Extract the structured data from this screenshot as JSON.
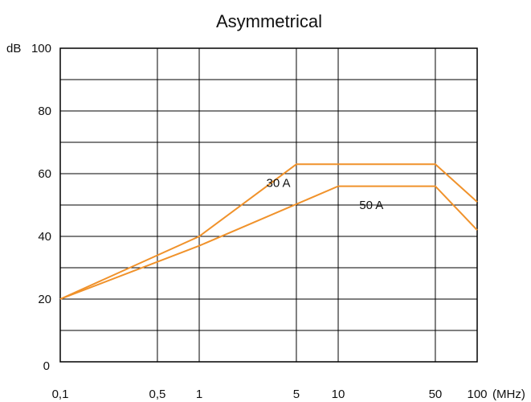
{
  "chart_data": {
    "type": "line",
    "title": "Asymmetrical",
    "ylabel": "dB",
    "xlabel": "(MHz)",
    "x_scale": "log",
    "xlim": [
      0.1,
      100
    ],
    "ylim": [
      0,
      100
    ],
    "x_ticks": [
      {
        "value": 0.1,
        "label": "0,1"
      },
      {
        "value": 0.5,
        "label": "0,5"
      },
      {
        "value": 1,
        "label": "1"
      },
      {
        "value": 5,
        "label": "5"
      },
      {
        "value": 10,
        "label": "10"
      },
      {
        "value": 50,
        "label": "50"
      },
      {
        "value": 100,
        "label": "100"
      }
    ],
    "y_ticks": [
      {
        "value": 0,
        "label": "0"
      },
      {
        "value": 20,
        "label": "20"
      },
      {
        "value": 40,
        "label": "40"
      },
      {
        "value": 60,
        "label": "60"
      },
      {
        "value": 80,
        "label": "80"
      },
      {
        "value": 100,
        "label": "100"
      }
    ],
    "y_grid_step": 10,
    "grid": true,
    "line_color": "#f0922b",
    "series": [
      {
        "name": "30 A",
        "points": [
          [
            0.1,
            20
          ],
          [
            1,
            40
          ],
          [
            5,
            63
          ],
          [
            50,
            63
          ],
          [
            100,
            51
          ]
        ]
      },
      {
        "name": "50 A",
        "points": [
          [
            0.1,
            20
          ],
          [
            1,
            37
          ],
          [
            10,
            56
          ],
          [
            50,
            56
          ],
          [
            100,
            42
          ]
        ]
      }
    ]
  }
}
